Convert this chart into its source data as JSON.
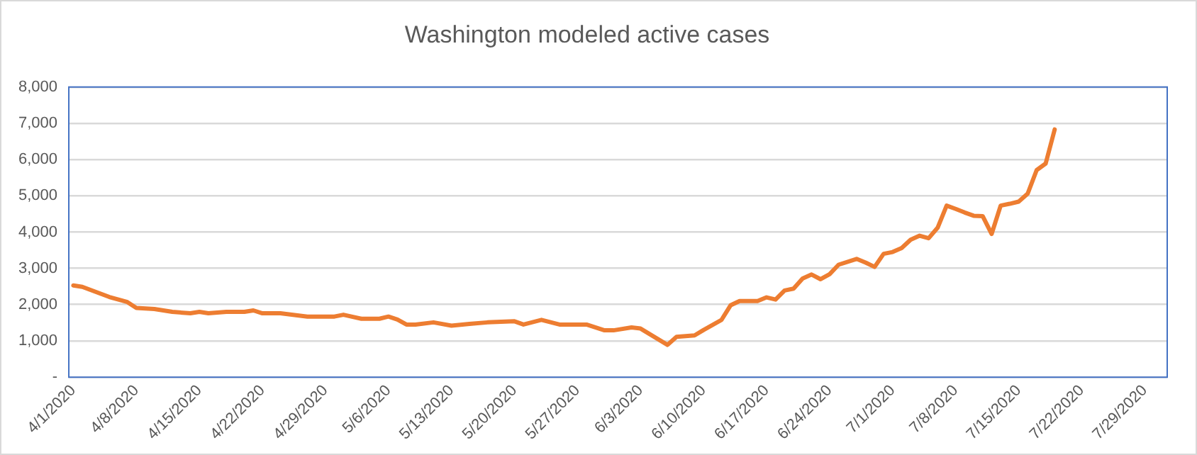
{
  "chart_data": {
    "type": "line",
    "title": "Washington modeled active cases",
    "x": [
      "2020-04-01",
      "2020-04-02",
      "2020-04-05",
      "2020-04-07",
      "2020-04-08",
      "2020-04-10",
      "2020-04-12",
      "2020-04-14",
      "2020-04-15",
      "2020-04-16",
      "2020-04-18",
      "2020-04-20",
      "2020-04-21",
      "2020-04-22",
      "2020-04-24",
      "2020-04-27",
      "2020-04-30",
      "2020-05-01",
      "2020-05-03",
      "2020-05-05",
      "2020-05-06",
      "2020-05-07",
      "2020-05-08",
      "2020-05-09",
      "2020-05-11",
      "2020-05-13",
      "2020-05-15",
      "2020-05-17",
      "2020-05-20",
      "2020-05-21",
      "2020-05-23",
      "2020-05-25",
      "2020-05-28",
      "2020-05-30",
      "2020-05-31",
      "2020-06-02",
      "2020-06-03",
      "2020-06-06",
      "2020-06-07",
      "2020-06-09",
      "2020-06-10",
      "2020-06-12",
      "2020-06-13",
      "2020-06-14",
      "2020-06-16",
      "2020-06-17",
      "2020-06-18",
      "2020-06-19",
      "2020-06-20",
      "2020-06-21",
      "2020-06-22",
      "2020-06-23",
      "2020-06-24",
      "2020-06-25",
      "2020-06-27",
      "2020-06-28",
      "2020-06-29",
      "2020-06-30",
      "2020-07-01",
      "2020-07-02",
      "2020-07-03",
      "2020-07-04",
      "2020-07-05",
      "2020-07-06",
      "2020-07-07",
      "2020-07-08",
      "2020-07-09",
      "2020-07-10",
      "2020-07-11",
      "2020-07-12",
      "2020-07-13",
      "2020-07-14",
      "2020-07-15",
      "2020-07-16",
      "2020-07-17",
      "2020-07-18",
      "2020-07-19"
    ],
    "series": [
      {
        "color": "#ed7d31",
        "values": [
          2530,
          2490,
          2210,
          2070,
          1910,
          1880,
          1800,
          1760,
          1800,
          1760,
          1800,
          1800,
          1840,
          1760,
          1760,
          1670,
          1670,
          1720,
          1610,
          1610,
          1670,
          1590,
          1450,
          1450,
          1510,
          1420,
          1470,
          1510,
          1540,
          1450,
          1580,
          1450,
          1450,
          1290,
          1290,
          1370,
          1340,
          890,
          1110,
          1150,
          1300,
          1580,
          1980,
          2100,
          2100,
          2200,
          2140,
          2390,
          2440,
          2720,
          2830,
          2700,
          2840,
          3100,
          3260,
          3160,
          3040,
          3400,
          3450,
          3560,
          3790,
          3900,
          3830,
          4120,
          4730,
          4640,
          4540,
          4450,
          4440,
          3950,
          4730,
          4780,
          4840,
          5060,
          5710,
          5890,
          6830
        ]
      }
    ],
    "xlim": [
      "2020-03-31T12:00",
      "2020-07-31T12:00"
    ],
    "xticks": [
      {
        "value": "2020-04-01",
        "label": "4/1/2020"
      },
      {
        "value": "2020-04-08",
        "label": "4/8/2020"
      },
      {
        "value": "2020-04-15",
        "label": "4/15/2020"
      },
      {
        "value": "2020-04-22",
        "label": "4/22/2020"
      },
      {
        "value": "2020-04-29",
        "label": "4/29/2020"
      },
      {
        "value": "2020-05-06",
        "label": "5/6/2020"
      },
      {
        "value": "2020-05-13",
        "label": "5/13/2020"
      },
      {
        "value": "2020-05-20",
        "label": "5/20/2020"
      },
      {
        "value": "2020-05-27",
        "label": "5/27/2020"
      },
      {
        "value": "2020-06-03",
        "label": "6/3/2020"
      },
      {
        "value": "2020-06-10",
        "label": "6/10/2020"
      },
      {
        "value": "2020-06-17",
        "label": "6/17/2020"
      },
      {
        "value": "2020-06-24",
        "label": "6/24/2020"
      },
      {
        "value": "2020-07-01",
        "label": "7/1/2020"
      },
      {
        "value": "2020-07-08",
        "label": "7/8/2020"
      },
      {
        "value": "2020-07-15",
        "label": "7/15/2020"
      },
      {
        "value": "2020-07-22",
        "label": "7/22/2020"
      },
      {
        "value": "2020-07-29",
        "label": "7/29/2020"
      }
    ],
    "ylim": [
      0,
      8000
    ],
    "yticks": [
      {
        "value": 0,
        "label": "-"
      },
      {
        "value": 1000,
        "label": "1,000"
      },
      {
        "value": 2000,
        "label": "2,000"
      },
      {
        "value": 3000,
        "label": "3,000"
      },
      {
        "value": 4000,
        "label": "4,000"
      },
      {
        "value": 5000,
        "label": "5,000"
      },
      {
        "value": 6000,
        "label": "6,000"
      },
      {
        "value": 7000,
        "label": "7,000"
      },
      {
        "value": 8000,
        "label": "8,000"
      }
    ],
    "grid": "y",
    "legend": false,
    "marker": "none",
    "line_style": "solid"
  }
}
